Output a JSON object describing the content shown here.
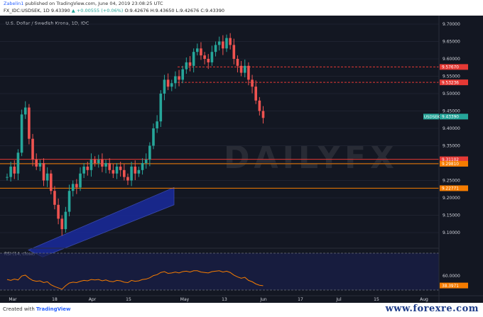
{
  "header": {
    "publisher_user": "Zabelin1",
    "publisher_rest": " published on TradingView.com, June 04, 2019 23:08:25 UTC",
    "symbol_line": "FX_IDC:USDSEK, 1D  9.43390 ",
    "change": "▲ +0.00555 (+0.06%)",
    "ohlc": " O:9.42676  H:9.43650  L:9.42676  C:9.43390"
  },
  "chart": {
    "title": "U.S. Dollar / Swedish Krona, 1D, IDC",
    "watermark": "DAILYFX",
    "rsi_label": "RSI (14, close)",
    "price_ticks": [
      "9.70000",
      "9.65000",
      "9.60000",
      "9.55000",
      "9.50000",
      "9.45000",
      "9.40000",
      "9.35000",
      "9.30000",
      "9.25000",
      "9.20000",
      "9.15000",
      "9.10000"
    ],
    "rsi_ticks": [
      "60.0000"
    ],
    "x_labels": [
      "Mar",
      "18",
      "Apr",
      "15",
      "May",
      "13",
      "Jun",
      "17",
      "Jul",
      "15",
      "Aug"
    ],
    "price_tags": [
      {
        "text": "9.57670",
        "color": "#e53935"
      },
      {
        "text": "9.53236",
        "color": "#e53935"
      },
      {
        "text": "9.43390",
        "color": "#26a69a"
      },
      {
        "text": "9.31102",
        "color": "#e53935"
      },
      {
        "text": "9.29810",
        "color": "#f57c00"
      },
      {
        "text": "9.22771",
        "color": "#f57c00"
      },
      {
        "text": "38.3971",
        "color": "#f57c00"
      }
    ],
    "symbol_tag": "USDSEK",
    "colors": {
      "up": "#26a69a",
      "down": "#ef5350",
      "resistance": "#e53935",
      "support": "#f57c00",
      "channel": "#1a2a9c",
      "rsi": "#f57c00"
    }
  },
  "footer": {
    "created_with": "Created with",
    "brand": "TradingView",
    "site": "www.forexre.com"
  }
}
